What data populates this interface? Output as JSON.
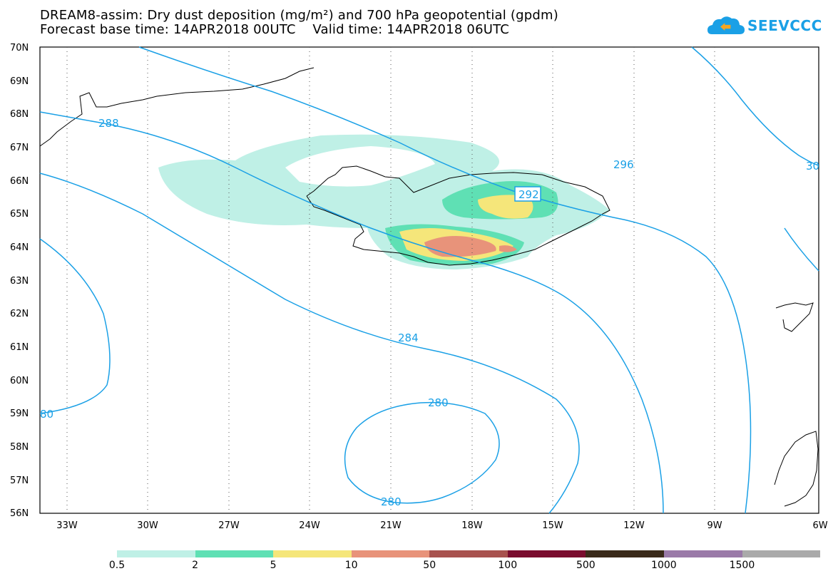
{
  "header": {
    "title_line1": "DREAM8-assim: Dry dust deposition (mg/m²) and 700 hPa geopotential (gpdm)",
    "title_line2": "Forecast base time: 14APR2018 00UTC    Valid time: 14APR2018 06UTC",
    "logo_text": "SEEVCCC"
  },
  "map": {
    "lat_labels": [
      "70N",
      "69N",
      "68N",
      "67N",
      "66N",
      "65N",
      "64N",
      "63N",
      "62N",
      "61N",
      "60N",
      "59N",
      "58N",
      "57N",
      "56N"
    ],
    "lon_labels": [
      "33W",
      "30W",
      "27W",
      "24W",
      "21W",
      "18W",
      "15W",
      "12W",
      "9W",
      "6W"
    ],
    "contour_labels": [
      "288",
      "296",
      "30",
      "292",
      "284",
      "280",
      "280",
      "80"
    ],
    "colors": {
      "contour": "#1aa0e6",
      "coast": "#000000",
      "grid": "#555555"
    }
  },
  "legend": {
    "labels": [
      "0.5",
      "2",
      "5",
      "10",
      "50",
      "100",
      "500",
      "1000",
      "1500"
    ],
    "colors": [
      "#bff0e6",
      "#5fe0b4",
      "#f5e67a",
      "#e8937a",
      "#a8524e",
      "#7a0c2e",
      "#3a2a1a",
      "#9a7aa8",
      "#aaaaaa"
    ]
  }
}
